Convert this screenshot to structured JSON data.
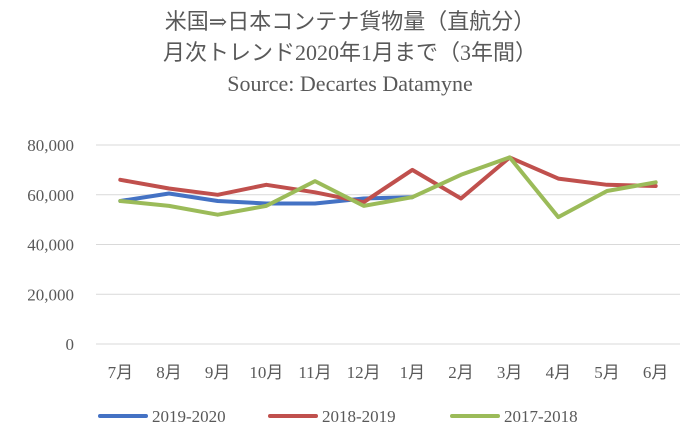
{
  "chart_data": {
    "type": "line",
    "title": [
      "米国⇒日本コンテナ貨物量（直航分）",
      "月次トレンド2020年1月まで（3年間）",
      "Source: Decartes Datamyne"
    ],
    "xlabel": "",
    "ylabel": "",
    "categories": [
      "7月",
      "8月",
      "9月",
      "10月",
      "11月",
      "12月",
      "1月",
      "2月",
      "3月",
      "4月",
      "5月",
      "6月"
    ],
    "y_ticks": [
      "0",
      "20,000",
      "40,000",
      "60,000",
      "80,000"
    ],
    "ylim": [
      0,
      80000
    ],
    "grid": "horizontal",
    "legend_position": "bottom",
    "series": [
      {
        "name": "2019-2020",
        "color": "#4472C4",
        "values": [
          57500,
          60500,
          57500,
          56500,
          56500,
          58500,
          59000,
          null,
          null,
          null,
          null,
          null
        ]
      },
      {
        "name": "2018-2019",
        "color": "#C0504D",
        "values": [
          66000,
          62500,
          60000,
          64000,
          61000,
          57000,
          70000,
          58500,
          75000,
          66500,
          64000,
          63500
        ]
      },
      {
        "name": "2017-2018",
        "color": "#9BBB59",
        "values": [
          57500,
          55500,
          52000,
          55500,
          65500,
          55500,
          59000,
          68000,
          75000,
          51000,
          61500,
          65000
        ]
      }
    ]
  }
}
